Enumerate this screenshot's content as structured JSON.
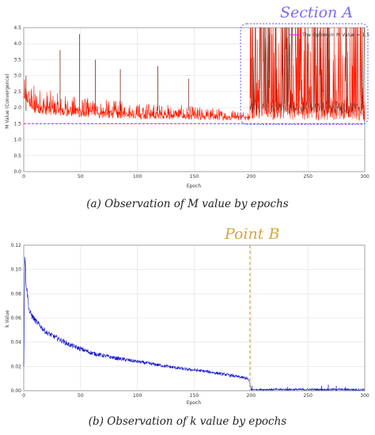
{
  "colors": {
    "series_a": "#ff1a00",
    "series_a_dark": "#7a2a1a",
    "optimum_line": "#ff00ff",
    "series_b": "#1010cc",
    "section_box": "#7a6cf0",
    "point_line": "#d4a640"
  },
  "captions": {
    "a": "(a) Observation of M value by epochs",
    "b": "(b) Observation of k value by epochs"
  },
  "annotations": {
    "section_a": "Section A",
    "point_b": "Point B"
  },
  "chart_data": [
    {
      "type": "line",
      "xlabel": "Epoch",
      "ylabel": "M Value (Convergence)",
      "xlim": [
        0,
        300
      ],
      "ylim": [
        0,
        4.5
      ],
      "xticks": [
        "0",
        "50",
        "100",
        "150",
        "200",
        "250",
        "300"
      ],
      "yticks": [
        "0.0",
        "0.5",
        "1.0",
        "1.5",
        "2.0",
        "2.5",
        "3.0",
        "3.5",
        "4.0",
        "4.5"
      ],
      "grid": true,
      "legend_position": "top-right",
      "legend": [
        "The Optimum M Value = 1.5"
      ],
      "series": [
        {
          "name": "The Optimum M Value = 1.5",
          "style": "dashed",
          "x": [
            0,
            300
          ],
          "values": [
            1.5,
            1.5
          ]
        },
        {
          "style": "noisy",
          "x": [
            0,
            10,
            30,
            50,
            75,
            100,
            125,
            150,
            175,
            199,
            200,
            215,
            230,
            250,
            270,
            290,
            300
          ],
          "values": [
            2.3,
            2.05,
            1.95,
            1.9,
            1.85,
            1.8,
            1.78,
            1.75,
            1.72,
            1.7,
            2.0,
            2.0,
            2.0,
            2.0,
            2.0,
            2.0,
            1.7
          ],
          "noise_low": [
            0.0,
            0.25,
            0.2,
            0.2,
            0.18,
            0.15,
            0.14,
            0.12,
            0.12,
            0.1,
            0.4,
            0.4,
            0.4,
            0.4,
            0.4,
            0.4,
            0.15
          ],
          "noise_high": [
            0.6,
            0.7,
            0.5,
            0.45,
            0.4,
            0.38,
            0.35,
            0.3,
            0.28,
            0.25,
            2.6,
            2.6,
            2.6,
            2.6,
            2.6,
            2.6,
            0.5
          ]
        }
      ],
      "spikes": [
        {
          "x": 2,
          "value": 3.0
        },
        {
          "x": 32,
          "value": 3.8
        },
        {
          "x": 49,
          "value": 4.3
        },
        {
          "x": 63,
          "value": 3.5
        },
        {
          "x": 85,
          "value": 3.2
        },
        {
          "x": 118,
          "value": 3.3
        },
        {
          "x": 145,
          "value": 2.9
        }
      ],
      "section_box_x": [
        195,
        300
      ],
      "section_box_y": [
        1.55,
        4.5
      ]
    },
    {
      "type": "line",
      "xlabel": "Epoch",
      "ylabel": "k Value",
      "xlim": [
        0,
        300
      ],
      "ylim": [
        0,
        0.12
      ],
      "xticks": [
        "0",
        "50",
        "100",
        "150",
        "200",
        "250",
        "300"
      ],
      "yticks": [
        "0.00",
        "0.02",
        "0.04",
        "0.06",
        "0.08",
        "0.10",
        "0.12"
      ],
      "grid": true,
      "series": [
        {
          "style": "noisy",
          "x": [
            0,
            1,
            2,
            5,
            10,
            20,
            40,
            60,
            80,
            100,
            120,
            140,
            160,
            180,
            197,
            199,
            200,
            220,
            250,
            280,
            300
          ],
          "values": [
            0.02,
            0.112,
            0.09,
            0.065,
            0.058,
            0.048,
            0.038,
            0.031,
            0.027,
            0.024,
            0.021,
            0.018,
            0.016,
            0.013,
            0.01,
            0.006,
            0.001,
            0.001,
            0.001,
            0.001,
            0.0008
          ],
          "noise": [
            0.0,
            0.002,
            0.004,
            0.003,
            0.0025,
            0.0022,
            0.002,
            0.0018,
            0.0016,
            0.0015,
            0.0014,
            0.0013,
            0.0012,
            0.0012,
            0.0012,
            0.001,
            0.0005,
            0.0008,
            0.0008,
            0.0008,
            0.0008
          ]
        }
      ],
      "spikes": [
        {
          "x": 201,
          "value": 0.004
        },
        {
          "x": 232,
          "value": 0.003
        },
        {
          "x": 262,
          "value": 0.004
        },
        {
          "x": 268,
          "value": 0.005
        },
        {
          "x": 275,
          "value": 0.004
        },
        {
          "x": 283,
          "value": 0.003
        }
      ],
      "marker_x": 199
    }
  ]
}
